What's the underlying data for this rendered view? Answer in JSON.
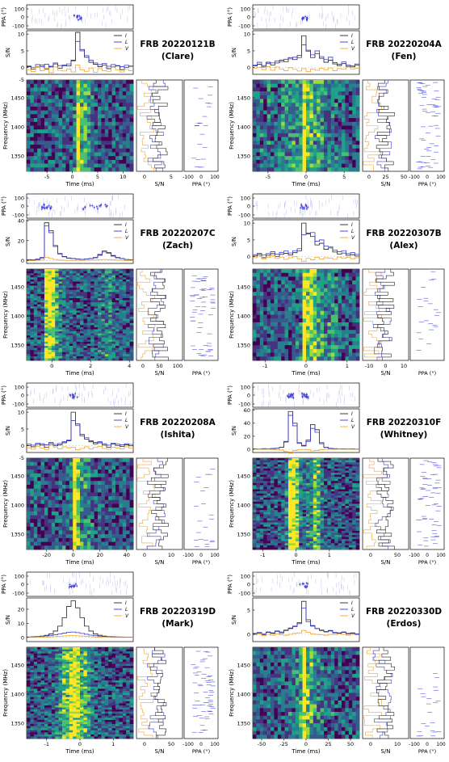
{
  "colors": {
    "stokes_I": "#222222",
    "stokes_L": "#3a3ad6",
    "stokes_V": "#f5a623",
    "ppa_points": "#3a3ad6",
    "colormap": "viridis"
  },
  "common_labels": {
    "ppa_axis": "PPA (°)",
    "sn_axis": "S/N",
    "freq_axis": "Frequency (MHz)",
    "time_axis": "Time (ms)",
    "legend": [
      "I",
      "L",
      "V"
    ]
  },
  "chart_data": [
    {
      "type": "line",
      "title": "FRB 20220121B",
      "subtitle": "(Clare)",
      "xlabel": "Time (ms)",
      "xlim": [
        -9,
        12
      ],
      "xticks": [
        "-5",
        "0",
        "5",
        "10"
      ],
      "ppa_yticks": [
        "100",
        "0",
        "-100"
      ],
      "sn_ylim": [
        -2,
        11
      ],
      "sn_yticks": [
        "10",
        "5",
        "0"
      ],
      "freq_yticks": [
        "1450",
        "1400",
        "1350"
      ],
      "spec_xticks": [
        "0",
        "5"
      ],
      "spec_top_tick": "-5",
      "ppa_spec_xticks": [
        "-100",
        "0",
        "100"
      ],
      "series": [
        {
          "name": "I",
          "values": [
            0.3,
            -0.4,
            0.2,
            0.8,
            -0.5,
            0.4,
            1.1,
            -0.2,
            0.6,
            0.5,
            2.2,
            10.5,
            5.4,
            3.1,
            1.6,
            1.0,
            0.3,
            0.7,
            -0.3,
            0.2,
            0.5,
            -0.6,
            0.1,
            0.4
          ]
        },
        {
          "name": "L",
          "values": [
            0.5,
            0.1,
            0.9,
            0.3,
            1.0,
            0.2,
            1.4,
            0.6,
            0.8,
            1.1,
            2.0,
            7.8,
            5.0,
            3.6,
            2.2,
            1.4,
            0.9,
            1.2,
            0.4,
            0.9,
            0.6,
            0.3,
            0.7,
            0.5
          ]
        },
        {
          "name": "V",
          "values": [
            -0.6,
            -1.2,
            0.3,
            -0.9,
            -0.2,
            -1.5,
            0.2,
            -0.8,
            -1.0,
            -0.4,
            -1.3,
            0.8,
            -0.6,
            -1.1,
            -0.2,
            -1.4,
            -0.3,
            -0.9,
            -1.1,
            0.1,
            -0.7,
            -1.3,
            -0.5,
            -0.9
          ]
        }
      ]
    },
    {
      "type": "line",
      "title": "FRB 20220204A",
      "subtitle": "(Fen)",
      "xlabel": "Time (ms)",
      "xlim": [
        -7,
        7
      ],
      "xticks": [
        "-5",
        "0",
        "5"
      ],
      "ppa_yticks": [
        "100",
        "0",
        "-100"
      ],
      "sn_ylim": [
        -2,
        11
      ],
      "sn_yticks": [
        "10",
        "5",
        "0"
      ],
      "freq_yticks": [
        "1450",
        "1400",
        "1350"
      ],
      "spec_xticks": [
        "0",
        "25",
        "50"
      ],
      "spec_top_tick": "",
      "ppa_spec_xticks": [
        "-100",
        "0",
        "100"
      ],
      "series": [
        {
          "name": "I",
          "values": [
            0.5,
            1.0,
            0.2,
            1.6,
            0.8,
            1.4,
            2.2,
            1.8,
            3.0,
            2.4,
            3.6,
            9.5,
            5.2,
            3.0,
            4.2,
            2.8,
            1.6,
            2.2,
            1.1,
            0.6,
            1.2,
            0.4,
            0.2,
            0.8
          ]
        },
        {
          "name": "L",
          "values": [
            0.8,
            1.6,
            0.6,
            1.2,
            1.4,
            2.0,
            1.8,
            2.5,
            2.6,
            3.1,
            3.0,
            6.8,
            4.9,
            3.8,
            5.0,
            3.3,
            2.4,
            3.1,
            1.5,
            1.0,
            1.7,
            0.8,
            0.5,
            1.1
          ]
        },
        {
          "name": "V",
          "values": [
            -0.2,
            0.1,
            -0.6,
            0.3,
            -0.8,
            0.2,
            -0.4,
            -0.9,
            0.0,
            -0.5,
            -1.0,
            -0.3,
            -1.2,
            -0.4,
            -0.8,
            -0.2,
            -0.6,
            -0.1,
            -0.9,
            -0.3,
            -0.5,
            0.2,
            -0.4,
            -0.2
          ]
        }
      ]
    },
    {
      "type": "line",
      "title": "FRB 20220207C",
      "subtitle": "(Zach)",
      "xlabel": "Time (ms)",
      "xlim": [
        -1.3,
        4.2
      ],
      "xticks": [
        "0",
        "2",
        "4"
      ],
      "ppa_yticks": [
        "100",
        "0",
        "-100"
      ],
      "sn_ylim": [
        -3,
        41
      ],
      "sn_yticks": [
        "40",
        "20",
        "0"
      ],
      "freq_yticks": [
        "1450",
        "1400",
        "1350"
      ],
      "spec_xticks": [
        "0",
        "50",
        "100"
      ],
      "spec_top_tick": "",
      "ppa_spec_xticks": [],
      "series": [
        {
          "name": "I",
          "values": [
            0.5,
            0.3,
            1.0,
            2.5,
            38.0,
            30.0,
            15.0,
            7.0,
            4.0,
            2.5,
            2.0,
            1.5,
            1.2,
            1.5,
            2.0,
            3.0,
            6.0,
            9.5,
            8.0,
            5.0,
            3.0,
            2.0,
            1.0,
            0.5
          ]
        },
        {
          "name": "L",
          "values": [
            0.8,
            0.6,
            1.5,
            3.0,
            35.0,
            28.0,
            14.0,
            6.5,
            3.6,
            2.2,
            1.8,
            1.3,
            1.1,
            1.4,
            1.8,
            2.6,
            5.2,
            8.5,
            7.2,
            4.4,
            2.6,
            1.8,
            0.9,
            0.6
          ]
        },
        {
          "name": "V",
          "values": [
            0.0,
            -0.2,
            0.2,
            0.5,
            3.0,
            2.0,
            1.0,
            0.4,
            0.2,
            0.1,
            0.0,
            0.1,
            0.0,
            0.2,
            0.3,
            0.4,
            0.6,
            1.0,
            0.8,
            0.5,
            0.3,
            0.1,
            0.0,
            0.0
          ]
        }
      ]
    },
    {
      "type": "line",
      "title": "FRB 20220307B",
      "subtitle": "(Alex)",
      "xlabel": "Time (ms)",
      "xlim": [
        -1.3,
        1.3
      ],
      "xticks": [
        "-1",
        "0",
        "1"
      ],
      "ppa_yticks": [
        "100",
        "0",
        "-100"
      ],
      "sn_ylim": [
        -2,
        11
      ],
      "sn_yticks": [
        "10",
        "5",
        "0"
      ],
      "freq_yticks": [
        "1450",
        "1400",
        "1350"
      ],
      "spec_xticks": [
        "-10",
        "0",
        "10"
      ],
      "spec_top_tick": "",
      "ppa_spec_xticks": [],
      "series": [
        {
          "name": "I",
          "values": [
            0.2,
            0.6,
            -0.3,
            0.4,
            0.9,
            0.1,
            0.7,
            1.0,
            0.5,
            1.2,
            1.8,
            10.0,
            7.0,
            6.0,
            3.5,
            4.0,
            2.2,
            2.6,
            1.4,
            0.8,
            1.1,
            0.4,
            0.6,
            0.2
          ]
        },
        {
          "name": "L",
          "values": [
            0.6,
            1.0,
            0.5,
            0.9,
            1.5,
            0.8,
            1.3,
            1.7,
            1.1,
            1.8,
            2.4,
            6.5,
            6.8,
            7.2,
            4.6,
            5.0,
            3.2,
            3.0,
            2.0,
            1.5,
            1.8,
            0.9,
            1.2,
            0.7
          ]
        },
        {
          "name": "V",
          "values": [
            -0.3,
            0.1,
            -0.7,
            -0.2,
            0.3,
            -0.5,
            -0.1,
            -0.8,
            -0.3,
            0.0,
            -0.6,
            -1.4,
            -0.5,
            -0.9,
            -0.2,
            -0.7,
            -0.3,
            -0.4,
            -0.8,
            -0.1,
            -0.5,
            -0.2,
            -0.6,
            -0.3
          ]
        }
      ]
    },
    {
      "type": "line",
      "title": "FRB 20220208A",
      "subtitle": "(Ishita)",
      "xlabel": "Time (ms)",
      "xlim": [
        -35,
        45
      ],
      "xticks": [
        "-20",
        "0",
        "20",
        "40"
      ],
      "ppa_yticks": [
        "100",
        "0",
        "-100"
      ],
      "sn_ylim": [
        -2,
        11
      ],
      "sn_yticks": [
        "10",
        "5",
        "0"
      ],
      "freq_yticks": [
        "1450",
        "1400",
        "1350"
      ],
      "spec_xticks": [
        "0",
        "10"
      ],
      "spec_top_tick": "-5",
      "ppa_spec_xticks": [
        "-100",
        "0",
        "100"
      ],
      "series": [
        {
          "name": "I",
          "values": [
            0.1,
            -0.3,
            0.4,
            0.2,
            -0.5,
            0.6,
            0.0,
            0.3,
            0.9,
            1.5,
            10.0,
            6.5,
            3.0,
            2.0,
            1.2,
            0.6,
            0.9,
            0.2,
            -0.4,
            0.5,
            0.1,
            -0.2,
            0.3,
            0.0
          ]
        },
        {
          "name": "L",
          "values": [
            0.5,
            0.2,
            0.8,
            0.6,
            0.3,
            1.0,
            0.4,
            0.7,
            1.2,
            1.7,
            7.5,
            6.0,
            3.4,
            2.4,
            1.5,
            1.0,
            1.2,
            0.6,
            0.2,
            0.8,
            0.5,
            0.3,
            0.6,
            0.4
          ]
        },
        {
          "name": "V",
          "values": [
            -0.6,
            -1.0,
            -0.2,
            -0.7,
            -1.1,
            0.1,
            -0.5,
            -0.9,
            -0.3,
            -0.6,
            -0.4,
            -1.2,
            -0.8,
            -0.3,
            -0.9,
            -0.5,
            -0.2,
            -0.8,
            -1.0,
            -0.4,
            -0.6,
            -0.9,
            -0.3,
            -0.7
          ]
        }
      ]
    },
    {
      "type": "line",
      "title": "FRB 20220310F",
      "subtitle": "(Whitney)",
      "xlabel": "Time (ms)",
      "xlim": [
        -1.3,
        1.9
      ],
      "xticks": [
        "-1",
        "0",
        "1"
      ],
      "ppa_yticks": [
        "100",
        "0",
        "-100"
      ],
      "sn_ylim": [
        -5,
        62
      ],
      "sn_yticks": [
        "60",
        "40",
        "20",
        "0"
      ],
      "freq_yticks": [
        "1450",
        "1400",
        "1350"
      ],
      "spec_xticks": [
        "0",
        "50"
      ],
      "spec_top_tick": "",
      "ppa_spec_xticks": [
        "-100",
        "0",
        "100"
      ],
      "series": [
        {
          "name": "I",
          "values": [
            0.5,
            0.2,
            0.8,
            0.5,
            1.0,
            1.5,
            3.0,
            12.0,
            58.0,
            40.0,
            10.0,
            6.0,
            14.0,
            38.0,
            30.0,
            10.0,
            3.0,
            1.5,
            0.8,
            0.4,
            0.6,
            0.3,
            0.5,
            0.2
          ]
        },
        {
          "name": "L",
          "values": [
            0.6,
            0.4,
            0.9,
            0.6,
            1.2,
            1.7,
            3.2,
            11.0,
            52.0,
            36.0,
            9.0,
            5.0,
            12.0,
            32.0,
            26.0,
            8.5,
            2.6,
            1.3,
            0.9,
            0.5,
            0.7,
            0.4,
            0.6,
            0.3
          ]
        },
        {
          "name": "V",
          "values": [
            0.0,
            0.1,
            -0.2,
            0.0,
            -0.3,
            -0.6,
            -1.2,
            -3.5,
            -6.0,
            -2.0,
            -0.5,
            -0.2,
            -0.8,
            -2.5,
            -1.8,
            -0.6,
            -0.2,
            0.0,
            -0.1,
            0.1,
            0.0,
            -0.1,
            0.0,
            0.1
          ]
        }
      ]
    },
    {
      "type": "line",
      "title": "FRB 20220319D",
      "subtitle": "(Mark)",
      "xlabel": "Time (ms)",
      "xlim": [
        -1.6,
        1.6
      ],
      "xticks": [
        "-1",
        "0",
        "1"
      ],
      "ppa_yticks": [
        "100",
        "0",
        "-100"
      ],
      "sn_ylim": [
        -3,
        28
      ],
      "sn_yticks": [
        "20",
        "10",
        "0"
      ],
      "freq_yticks": [
        "1450",
        "1400",
        "1350"
      ],
      "spec_xticks": [
        "0",
        "50"
      ],
      "spec_top_tick": "",
      "ppa_spec_xticks": [
        "-100",
        "0",
        "100"
      ],
      "series": [
        {
          "name": "I",
          "values": [
            0.2,
            0.4,
            0.6,
            0.9,
            1.5,
            2.5,
            4.5,
            8.0,
            14.0,
            22.0,
            26.0,
            21.0,
            14.0,
            8.0,
            4.5,
            2.5,
            1.5,
            0.9,
            0.6,
            0.4,
            0.3,
            0.2,
            0.2,
            0.1
          ]
        },
        {
          "name": "L",
          "values": [
            0.3,
            0.5,
            0.6,
            0.8,
            1.0,
            1.4,
            1.8,
            2.4,
            3.0,
            3.6,
            3.8,
            3.4,
            2.8,
            2.2,
            1.6,
            1.2,
            0.9,
            0.7,
            0.5,
            0.4,
            0.3,
            0.3,
            0.2,
            0.2
          ]
        },
        {
          "name": "V",
          "values": [
            0.0,
            0.1,
            0.0,
            0.2,
            0.3,
            0.4,
            0.6,
            0.8,
            1.0,
            1.2,
            1.3,
            1.1,
            0.9,
            0.7,
            0.5,
            0.3,
            0.2,
            0.1,
            0.1,
            0.0,
            0.0,
            0.0,
            0.0,
            0.0
          ]
        }
      ]
    },
    {
      "type": "line",
      "title": "FRB 20220330D",
      "subtitle": "(Erdos)",
      "xlabel": "Time (ms)",
      "xlim": [
        -60,
        60
      ],
      "xticks": [
        "-50",
        "-25",
        "0",
        "25",
        "50"
      ],
      "ppa_yticks": [
        "100",
        "0",
        "-100"
      ],
      "sn_ylim": [
        -1.5,
        7.5
      ],
      "sn_yticks": [
        "5",
        "0"
      ],
      "freq_yticks": [
        "1450",
        "1400",
        "1350"
      ],
      "spec_xticks": [
        "0",
        "10"
      ],
      "spec_top_tick": "",
      "ppa_spec_xticks": [
        "-100",
        "0",
        "100"
      ],
      "series": [
        {
          "name": "I",
          "values": [
            0.1,
            0.3,
            -0.1,
            0.4,
            0.2,
            0.6,
            0.3,
            0.8,
            1.2,
            1.6,
            2.4,
            6.8,
            3.0,
            1.8,
            1.2,
            0.8,
            0.5,
            0.7,
            0.3,
            0.2,
            0.4,
            0.1,
            0.2,
            0.0
          ]
        },
        {
          "name": "L",
          "values": [
            0.2,
            0.4,
            0.1,
            0.5,
            0.3,
            0.7,
            0.5,
            0.9,
            1.3,
            1.7,
            2.2,
            5.4,
            2.6,
            1.7,
            1.2,
            0.9,
            0.6,
            0.8,
            0.4,
            0.3,
            0.5,
            0.2,
            0.3,
            0.1
          ]
        },
        {
          "name": "V",
          "values": [
            -0.1,
            0.1,
            -0.3,
            0.0,
            -0.2,
            0.1,
            -0.1,
            -0.2,
            0.0,
            0.2,
            0.3,
            0.8,
            0.4,
            0.1,
            0.0,
            -0.1,
            -0.2,
            0.0,
            -0.1,
            0.1,
            0.0,
            -0.2,
            0.0,
            -0.1
          ]
        }
      ]
    }
  ]
}
